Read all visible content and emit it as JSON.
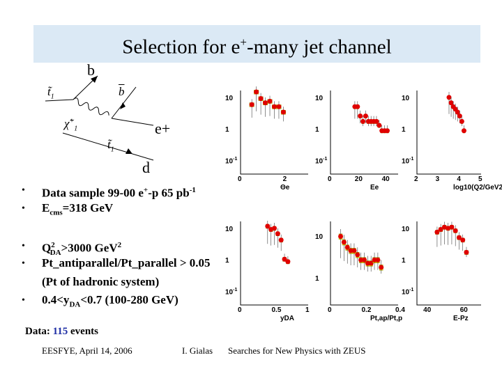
{
  "title": {
    "main": "Selection for e",
    "sup": "+",
    "rest": "-many jet channel"
  },
  "diagram": {
    "b_top": "b",
    "e_plus": "e+",
    "d_label": "d",
    "stop1": "t̃",
    "stop1_sub": "1",
    "bbar": "b",
    "chi": "χ̃",
    "chi_sup": "+",
    "chi_sub": "1",
    "stop2": "t̃",
    "stop2_sub": "1"
  },
  "bullets": [
    {
      "marker": "•",
      "line1": "Data sample   99-00 e",
      "sup1": "+",
      "line2": "-p  65 pb",
      "sup2": "-1"
    },
    {
      "marker": "•",
      "line1": "E",
      "sub": "cms",
      "line2": "=318 GeV"
    },
    {
      "marker": "•",
      "line1": "Q",
      "sup": "2",
      "sub": "DA",
      "line2": ">3000 GeV",
      "sup2": "2"
    },
    {
      "marker": "•",
      "line1": "Pt_antiparallel/Pt_parallel > 0.05",
      "line2": "(Pt of hadronic system)"
    },
    {
      "marker": "•",
      "line1": "0.4<y",
      "sub": "DA",
      "line2": "<0.7 (100-280 GeV)"
    }
  ],
  "data_summary": {
    "label": "Data: ",
    "count": "115",
    "unit": " events"
  },
  "footer": {
    "left": "EESFYE, April 14, 2006",
    "center": "I. Gialas",
    "right": "Searches for New Physics with ZEUS"
  },
  "colors": {
    "title_bg": "#dbe9f5",
    "data_count": "#1f2fa5",
    "mc_fill": "#ffff00",
    "data_point": "#e00000"
  },
  "plots": [
    {
      "name": "theta-e",
      "xlabel": "Θe",
      "x_ticks": [
        "0",
        "2"
      ],
      "y_ticks": [
        "10",
        "1",
        "10-1"
      ],
      "chart_data": {
        "type": "histogram",
        "x": [
          0.5,
          0.7,
          0.9,
          1.1,
          1.3,
          1.5,
          1.7,
          1.9,
          2.1,
          2.3
        ],
        "values": [
          7,
          18,
          11,
          8,
          9,
          6,
          6,
          4,
          0,
          0
        ]
      }
    },
    {
      "name": "e-e",
      "xlabel": "Ee",
      "x_ticks": [
        "0",
        "20",
        "40"
      ],
      "y_ticks": [
        "10",
        "1",
        "10-1"
      ],
      "chart_data": {
        "type": "histogram",
        "x": [
          18,
          20,
          22,
          24,
          26,
          28,
          30,
          32,
          34,
          36,
          38,
          40,
          42
        ],
        "values": [
          6,
          6,
          3,
          2,
          3,
          2,
          2,
          2,
          2,
          1.5,
          1,
          1,
          1
        ]
      }
    },
    {
      "name": "log-q2",
      "xlabel": "log10(Q2/GeV2)",
      "x_ticks": [
        "2",
        "3",
        "4",
        "5"
      ],
      "y_ticks": [
        "10",
        "1",
        "10-1"
      ],
      "chart_data": {
        "type": "histogram",
        "x": [
          3.5,
          3.6,
          3.7,
          3.8,
          3.9,
          4.0,
          4.1,
          4.2
        ],
        "values": [
          12,
          8,
          6,
          5,
          4,
          3,
          2,
          1
        ]
      }
    },
    {
      "name": "y-da",
      "xlabel": "yDA",
      "x_ticks": [
        "0",
        "0.5",
        "1"
      ],
      "y_ticks": [
        "10",
        "1",
        "10-1"
      ],
      "chart_data": {
        "type": "histogram",
        "x": [
          0.4,
          0.45,
          0.5,
          0.55,
          0.6,
          0.65,
          0.7
        ],
        "values": [
          14,
          11,
          12,
          8,
          5,
          1.2,
          1
        ]
      }
    },
    {
      "name": "pt-ratio",
      "xlabel": "Pt,ap/Pt,p",
      "x_ticks": [
        "0",
        "0.2",
        "0.4"
      ],
      "y_ticks": [
        "10",
        "1"
      ],
      "chart_data": {
        "type": "histogram",
        "x": [
          0.06,
          0.08,
          0.1,
          0.12,
          0.14,
          0.16,
          0.18,
          0.2,
          0.22,
          0.24,
          0.26,
          0.28,
          0.3
        ],
        "values": [
          11,
          8,
          6,
          5,
          5,
          4,
          3,
          3,
          2.5,
          2.5,
          3,
          3,
          2
        ]
      }
    },
    {
      "name": "e-pz",
      "xlabel": "E-Pz",
      "x_ticks": [
        "40",
        "60"
      ],
      "y_ticks": [
        "10",
        "1",
        "10-1"
      ],
      "chart_data": {
        "type": "histogram",
        "x": [
          46,
          48,
          50,
          52,
          54,
          56,
          58,
          60,
          62
        ],
        "values": [
          9,
          11,
          13,
          12,
          13,
          10,
          6,
          5,
          2
        ]
      }
    }
  ]
}
